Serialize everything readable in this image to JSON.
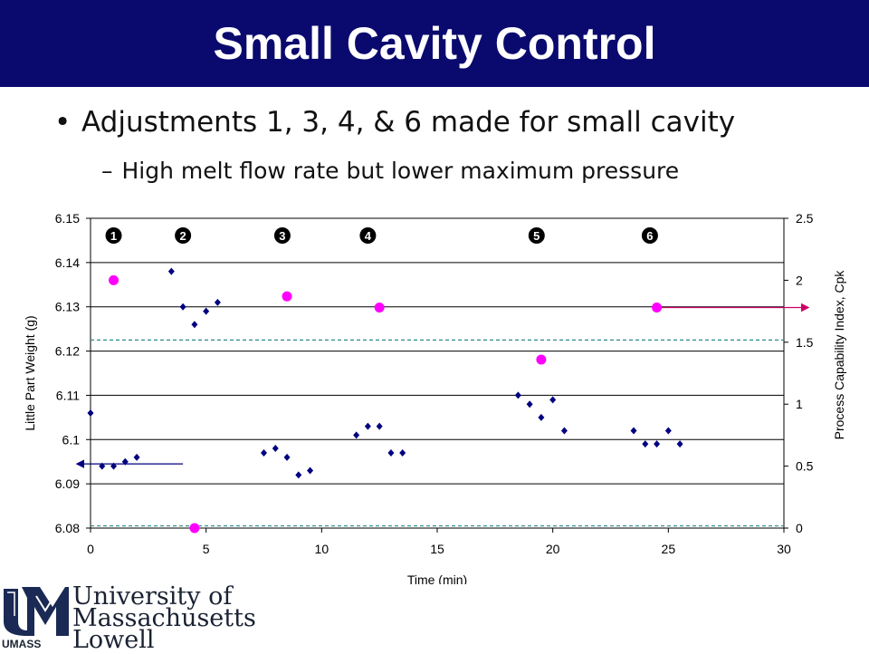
{
  "slide": {
    "title": "Small Cavity Control",
    "bullet": "Adjustments 1, 3, 4, & 6 made for small cavity",
    "sub_dash": "–",
    "sub_bullet": "High melt flow rate but lower maximum pressure"
  },
  "logo": {
    "line1": "University of",
    "line2": "Massachusetts",
    "line3": "Lowell",
    "mark": "UMASS"
  },
  "chart_data": {
    "type": "scatter",
    "xlabel": "Time (min)",
    "ylabel": "Little Part Weight (g)",
    "y2label": "Process Capability Index, Cpk",
    "xlim": [
      0,
      30
    ],
    "ylim": [
      6.08,
      6.15
    ],
    "y2lim": [
      0,
      2.5
    ],
    "xticks": [
      "0",
      "5",
      "10",
      "15",
      "20",
      "25",
      "30"
    ],
    "yticks": [
      "6.08",
      "6.09",
      "6.1",
      "6.11",
      "6.12",
      "6.13",
      "6.14",
      "6.15"
    ],
    "y2ticks": [
      "0",
      "0.5",
      "1",
      "1.5",
      "2",
      "2.5"
    ],
    "grid": "horizontal",
    "adjustment_markers": [
      {
        "label": "1",
        "x": 1
      },
      {
        "label": "2",
        "x": 4
      },
      {
        "label": "3",
        "x": 8.3
      },
      {
        "label": "4",
        "x": 12
      },
      {
        "label": "5",
        "x": 19.3
      },
      {
        "label": "6",
        "x": 24.2
      }
    ],
    "weight_series": {
      "color": "#000080",
      "points": [
        [
          0,
          6.106
        ],
        [
          0.5,
          6.094
        ],
        [
          1,
          6.094
        ],
        [
          1.5,
          6.095
        ],
        [
          2,
          6.096
        ],
        [
          3.5,
          6.138
        ],
        [
          4,
          6.13
        ],
        [
          4.5,
          6.126
        ],
        [
          5,
          6.129
        ],
        [
          5.5,
          6.131
        ],
        [
          7.5,
          6.097
        ],
        [
          8,
          6.098
        ],
        [
          8.5,
          6.096
        ],
        [
          9,
          6.092
        ],
        [
          9.5,
          6.093
        ],
        [
          11.5,
          6.101
        ],
        [
          12,
          6.103
        ],
        [
          12.5,
          6.103
        ],
        [
          13,
          6.097
        ],
        [
          13.5,
          6.097
        ],
        [
          18.5,
          6.11
        ],
        [
          19,
          6.108
        ],
        [
          19.5,
          6.105
        ],
        [
          20,
          6.109
        ],
        [
          20.5,
          6.102
        ],
        [
          23.5,
          6.102
        ],
        [
          24,
          6.099
        ],
        [
          24.5,
          6.099
        ],
        [
          25,
          6.102
        ],
        [
          25.5,
          6.099
        ]
      ]
    },
    "cpk_series": {
      "color": "#ff00ff",
      "points": [
        [
          1,
          2.0
        ],
        [
          4.5,
          0.0
        ],
        [
          8.5,
          1.87
        ],
        [
          12.5,
          1.78
        ],
        [
          19.5,
          1.36
        ],
        [
          24.5,
          1.78
        ]
      ]
    },
    "control_limits": {
      "color": "#2e8b8b",
      "values": [
        6.1225,
        6.0805
      ]
    },
    "annotation_arrows": [
      {
        "axis": "left",
        "from_x": 4,
        "to_x": 0,
        "y": 6.0945,
        "color": "#000080"
      },
      {
        "axis": "right",
        "from_x": 24.5,
        "to_x": 30,
        "y": 1.78,
        "color": "#cc0066"
      }
    ]
  }
}
